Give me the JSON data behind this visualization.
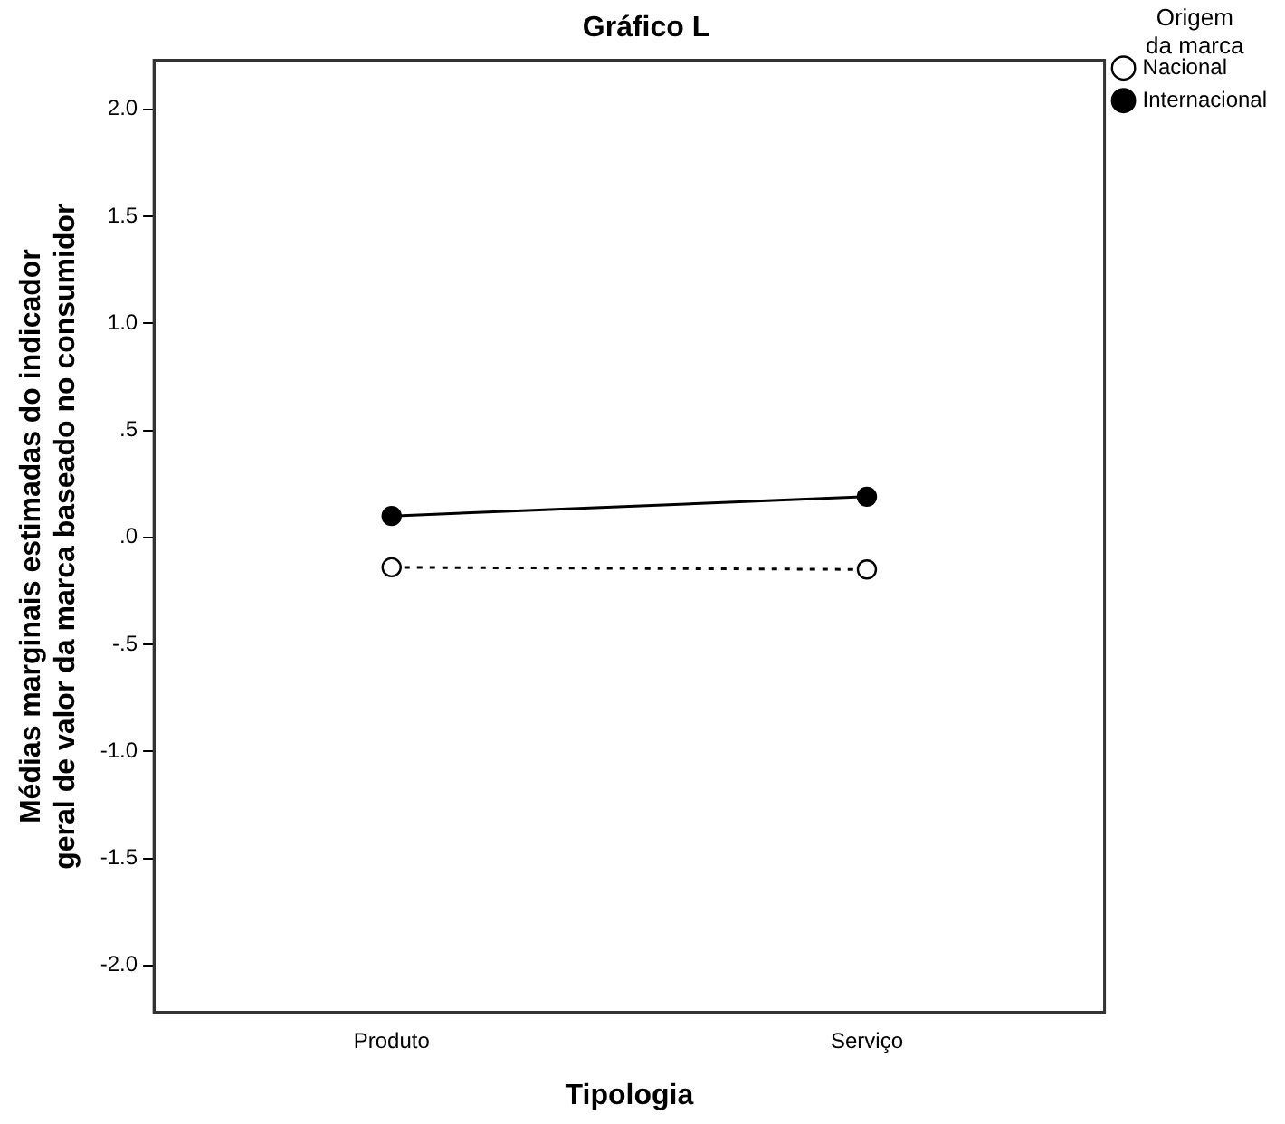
{
  "chart_data": {
    "type": "line",
    "title": "Gráfico L",
    "xlabel": "Tipologia",
    "ylabel": "Médias marginais estimadas do indicador geral de valor da marca baseado no consumidor",
    "legend_title": "Origem da marca",
    "categories": [
      "Produto",
      "Serviço"
    ],
    "series": [
      {
        "name": "Nacional",
        "color": "#000000",
        "values": [
          -0.14,
          -0.15
        ],
        "line_style": "dashed",
        "marker": "circle"
      },
      {
        "name": "Internacional",
        "color": "#000000",
        "values": [
          0.1,
          0.19
        ],
        "line_style": "solid",
        "marker": "circle"
      }
    ],
    "ylim": [
      -2.22,
      2.23
    ],
    "yticks": [
      {
        "value": -2,
        "label": "-2.0"
      },
      {
        "value": -1.5,
        "label": "-1.5"
      },
      {
        "value": -1,
        "label": "-1.0"
      },
      {
        "value": -0.5,
        "label": "-.5"
      },
      {
        "value": 0,
        "label": ".0"
      },
      {
        "value": 0.5,
        "label": ".5"
      },
      {
        "value": 1,
        "label": "1.0"
      },
      {
        "value": 1.5,
        "label": "1.5"
      },
      {
        "value": 2,
        "label": "2.0"
      }
    ],
    "grid": false,
    "legend": "top right"
  }
}
